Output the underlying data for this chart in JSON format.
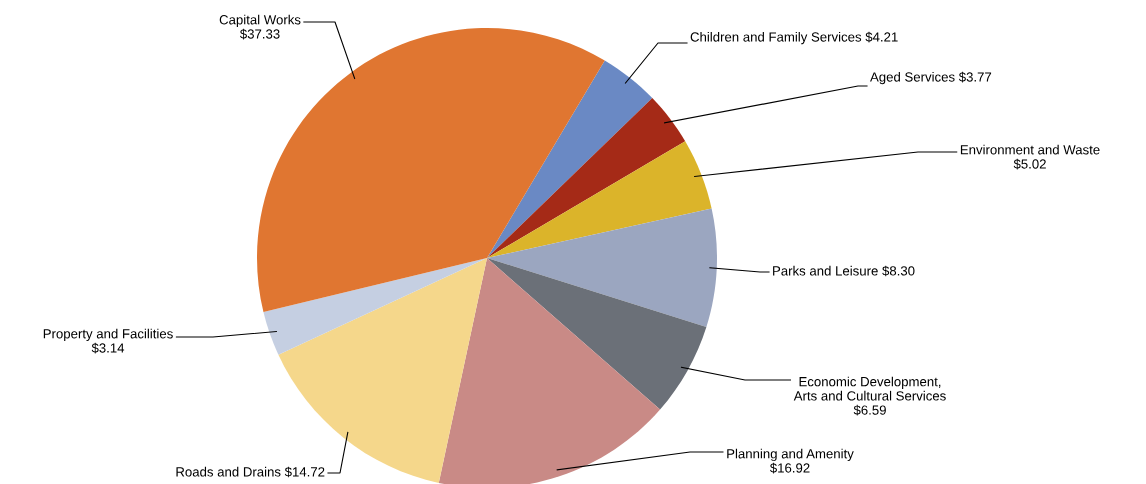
{
  "chart_data": {
    "type": "pie",
    "categories": [
      "Children and Family Services",
      "Aged Services",
      "Environment and Waste",
      "Parks and Leisure",
      "Economic Development,\nArts and Cultural Services",
      "Planning and Amenity",
      "Roads and Drains",
      "Property and Facilities",
      "Capital Works"
    ],
    "values": [
      4.21,
      3.77,
      5.02,
      8.3,
      6.59,
      16.92,
      14.72,
      3.14,
      37.33
    ],
    "value_labels": [
      "$4.21",
      "$3.77",
      "$5.02",
      "$8.30",
      "$6.59",
      "$16.92",
      "$14.72",
      "$3.14",
      "$37.33"
    ],
    "colors": [
      "#6a89c4",
      "#a52a17",
      "#dbb42a",
      "#9ba6c0",
      "#6b7078",
      "#c98a86",
      "#f5d78b",
      "#c5cfe2",
      "#e07631"
    ]
  }
}
